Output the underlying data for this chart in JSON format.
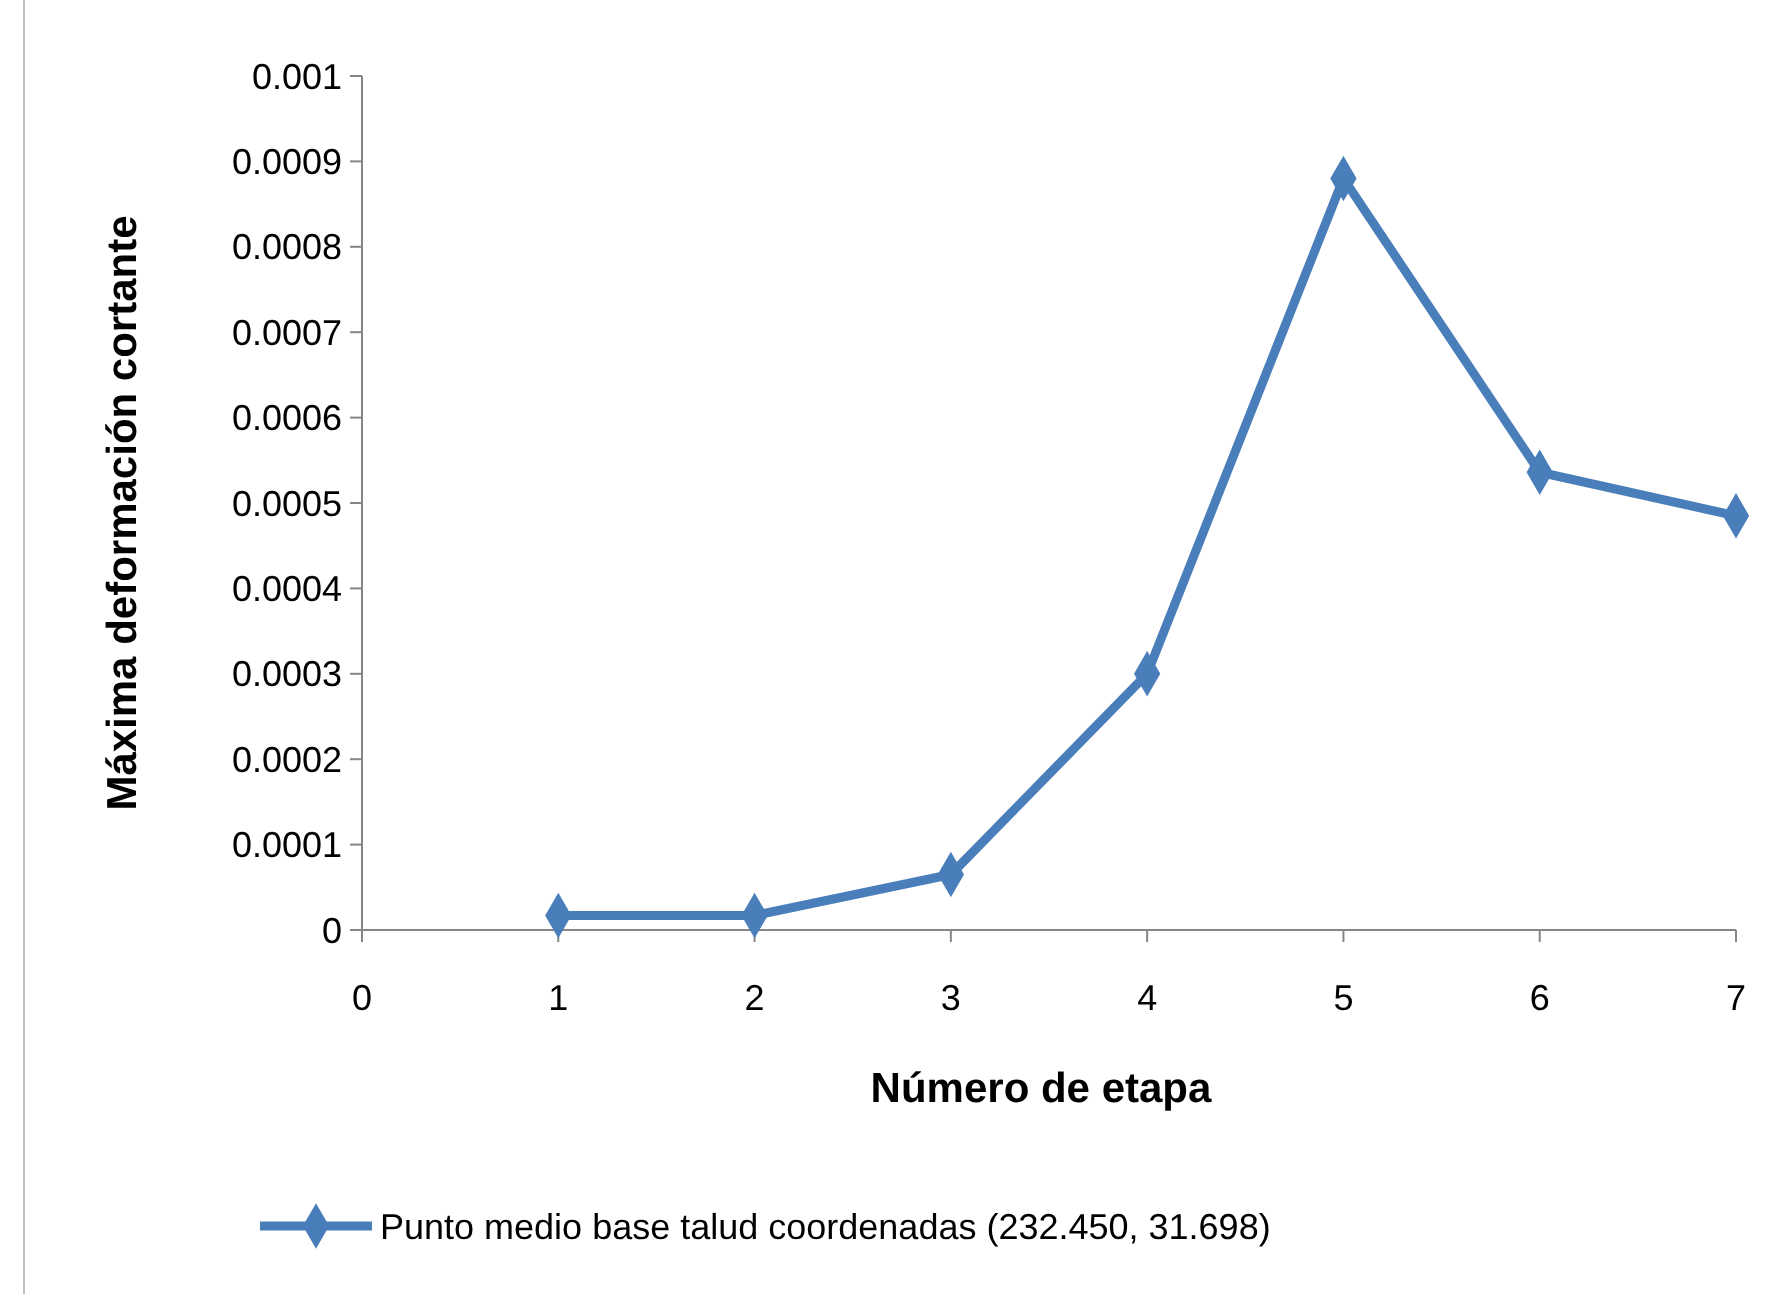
{
  "chart_data": {
    "type": "line",
    "xlabel": "Número de etapa",
    "ylabel": "Máxima deformación cortante",
    "x": [
      1,
      2,
      3,
      4,
      5,
      6,
      7
    ],
    "series": [
      {
        "name": "Punto medio base talud coordenadas (232.450, 31.698)",
        "color": "#4a7ebb",
        "values": [
          1.7e-05,
          1.7e-05,
          6.5e-05,
          0.0003,
          0.00088,
          0.000536,
          0.000485
        ]
      }
    ],
    "xlim": [
      0,
      7
    ],
    "xticks": [
      0,
      1,
      2,
      3,
      4,
      5,
      6,
      7
    ],
    "ylim": [
      0,
      0.001
    ],
    "yticks": [
      0,
      0.0001,
      0.0002,
      0.0003,
      0.0004,
      0.0005,
      0.0006,
      0.0007,
      0.0008,
      0.0009,
      0.001
    ],
    "marker": "diamond",
    "line_style": "solid",
    "grid": false,
    "legend": "bottom"
  }
}
